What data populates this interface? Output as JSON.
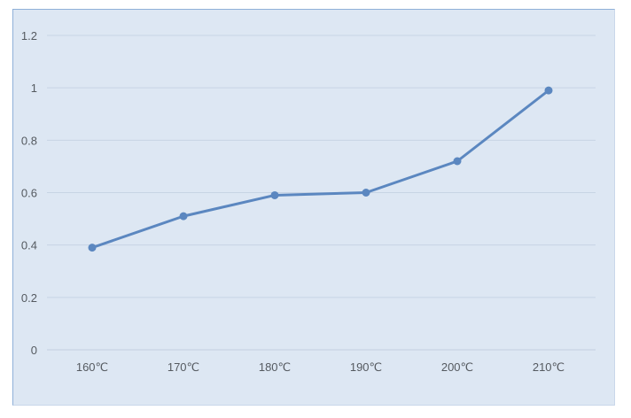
{
  "chart_data": {
    "type": "line",
    "categories": [
      "160℃",
      "170℃",
      "180℃",
      "190℃",
      "200℃",
      "210℃"
    ],
    "series": [
      {
        "values": [
          0.39,
          0.51,
          0.59,
          0.6,
          0.72,
          0.99
        ],
        "color": "#5b87c0"
      }
    ],
    "ylim": [
      0,
      1.2
    ],
    "yticks": [
      0,
      0.2,
      0.4,
      0.6,
      0.8,
      1,
      1.2
    ],
    "ytick_labels": [
      "0",
      "0.2",
      "0.4",
      "0.6",
      "0.8",
      "1",
      "1.2"
    ],
    "grid": true,
    "legend": false,
    "background": "#dde7f3"
  }
}
